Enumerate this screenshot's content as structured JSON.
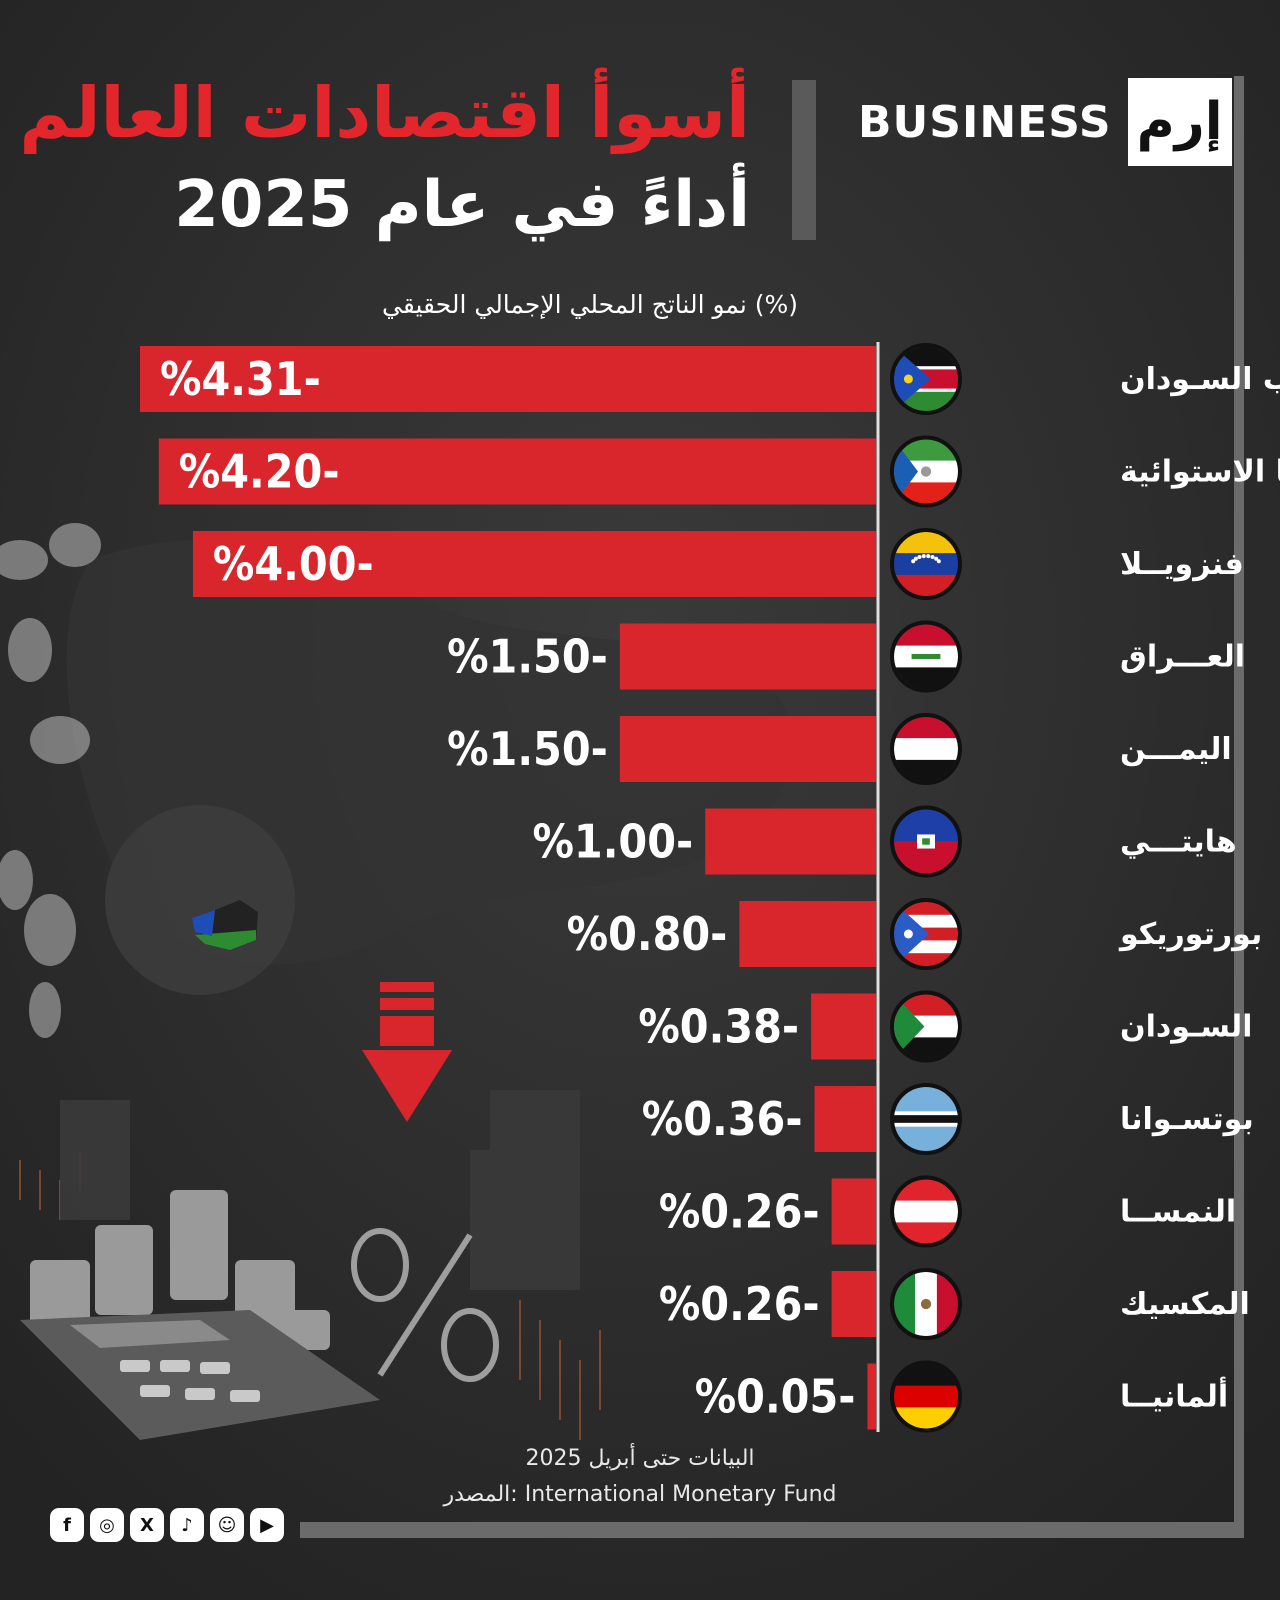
{
  "header": {
    "brand_name": "BUSINESS",
    "brand_logo": "إرم",
    "title": "أسوأ اقتصادات العالم",
    "subtitle": "أداءً في عام 2025"
  },
  "colors": {
    "bar": "#d8262c",
    "title": "#e3262b",
    "background": "#2a2a2a"
  },
  "chart_data": {
    "type": "bar",
    "orientation": "horizontal",
    "xlabel": "(%) نمو الناتج المحلي الإجمالي الحقيقي",
    "xlim": [
      -4.31,
      0
    ],
    "categories": [
      {
        "label": "جنــــوب السـودان",
        "flag": "south-sudan",
        "value": -4.31,
        "value_label": "%4.31-"
      },
      {
        "label": "غينيـــا الاستوائية",
        "flag": "equatorial-guinea",
        "value": -4.2,
        "value_label": "%4.20-"
      },
      {
        "label": "فنزويــلا",
        "flag": "venezuela",
        "value": -4.0,
        "value_label": "%4.00-"
      },
      {
        "label": "العـــراق",
        "flag": "iraq",
        "value": -1.5,
        "value_label": "%1.50-"
      },
      {
        "label": "اليمـــن",
        "flag": "yemen",
        "value": -1.5,
        "value_label": "%1.50-"
      },
      {
        "label": "هايتـــي",
        "flag": "haiti",
        "value": -1.0,
        "value_label": "%1.00-"
      },
      {
        "label": "بورتوريكو",
        "flag": "puerto-rico",
        "value": -0.8,
        "value_label": "%0.80-"
      },
      {
        "label": "السـودان",
        "flag": "sudan",
        "value": -0.38,
        "value_label": "%0.38-"
      },
      {
        "label": "بوتسـوانا",
        "flag": "botswana",
        "value": -0.36,
        "value_label": "%0.36-"
      },
      {
        "label": "النمســا",
        "flag": "austria",
        "value": -0.26,
        "value_label": "%0.26-"
      },
      {
        "label": "المكسيك",
        "flag": "mexico",
        "value": -0.26,
        "value_label": "%0.26-"
      },
      {
        "label": "ألمانيــا",
        "flag": "germany",
        "value": -0.05,
        "value_label": "%0.05-"
      }
    ]
  },
  "footer": {
    "note": "البيانات حتى أبريل 2025",
    "source": "المصدر: International Monetary Fund",
    "social_icons": [
      "facebook-icon",
      "instagram-icon",
      "x-icon",
      "tiktok-icon",
      "snapchat-icon",
      "youtube-icon"
    ]
  }
}
